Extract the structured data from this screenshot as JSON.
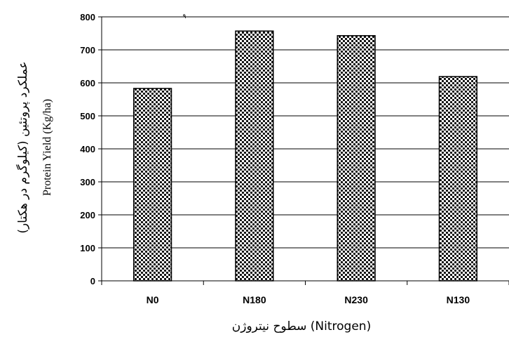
{
  "chart_data": {
    "type": "bar",
    "categories": [
      "N0",
      "N180",
      "N230",
      "N130"
    ],
    "values": [
      583,
      757,
      743,
      619
    ],
    "ylim": [
      0,
      800
    ],
    "yticks": [
      0,
      100,
      200,
      300,
      400,
      500,
      600,
      700,
      800
    ],
    "ylabel_en": "Protein Yield (Kg/ha)",
    "ylabel_fa": "عملکرد پروتئین (کیلوگرم در هکتار)",
    "xlabel": "سطوح نیتروژن  (Nitrogen)",
    "annotation": "٩",
    "grid": "horizontal",
    "colors": {
      "bar_pattern": "#000000",
      "bar_fill": "#ffffff",
      "grid": "#000000"
    }
  }
}
